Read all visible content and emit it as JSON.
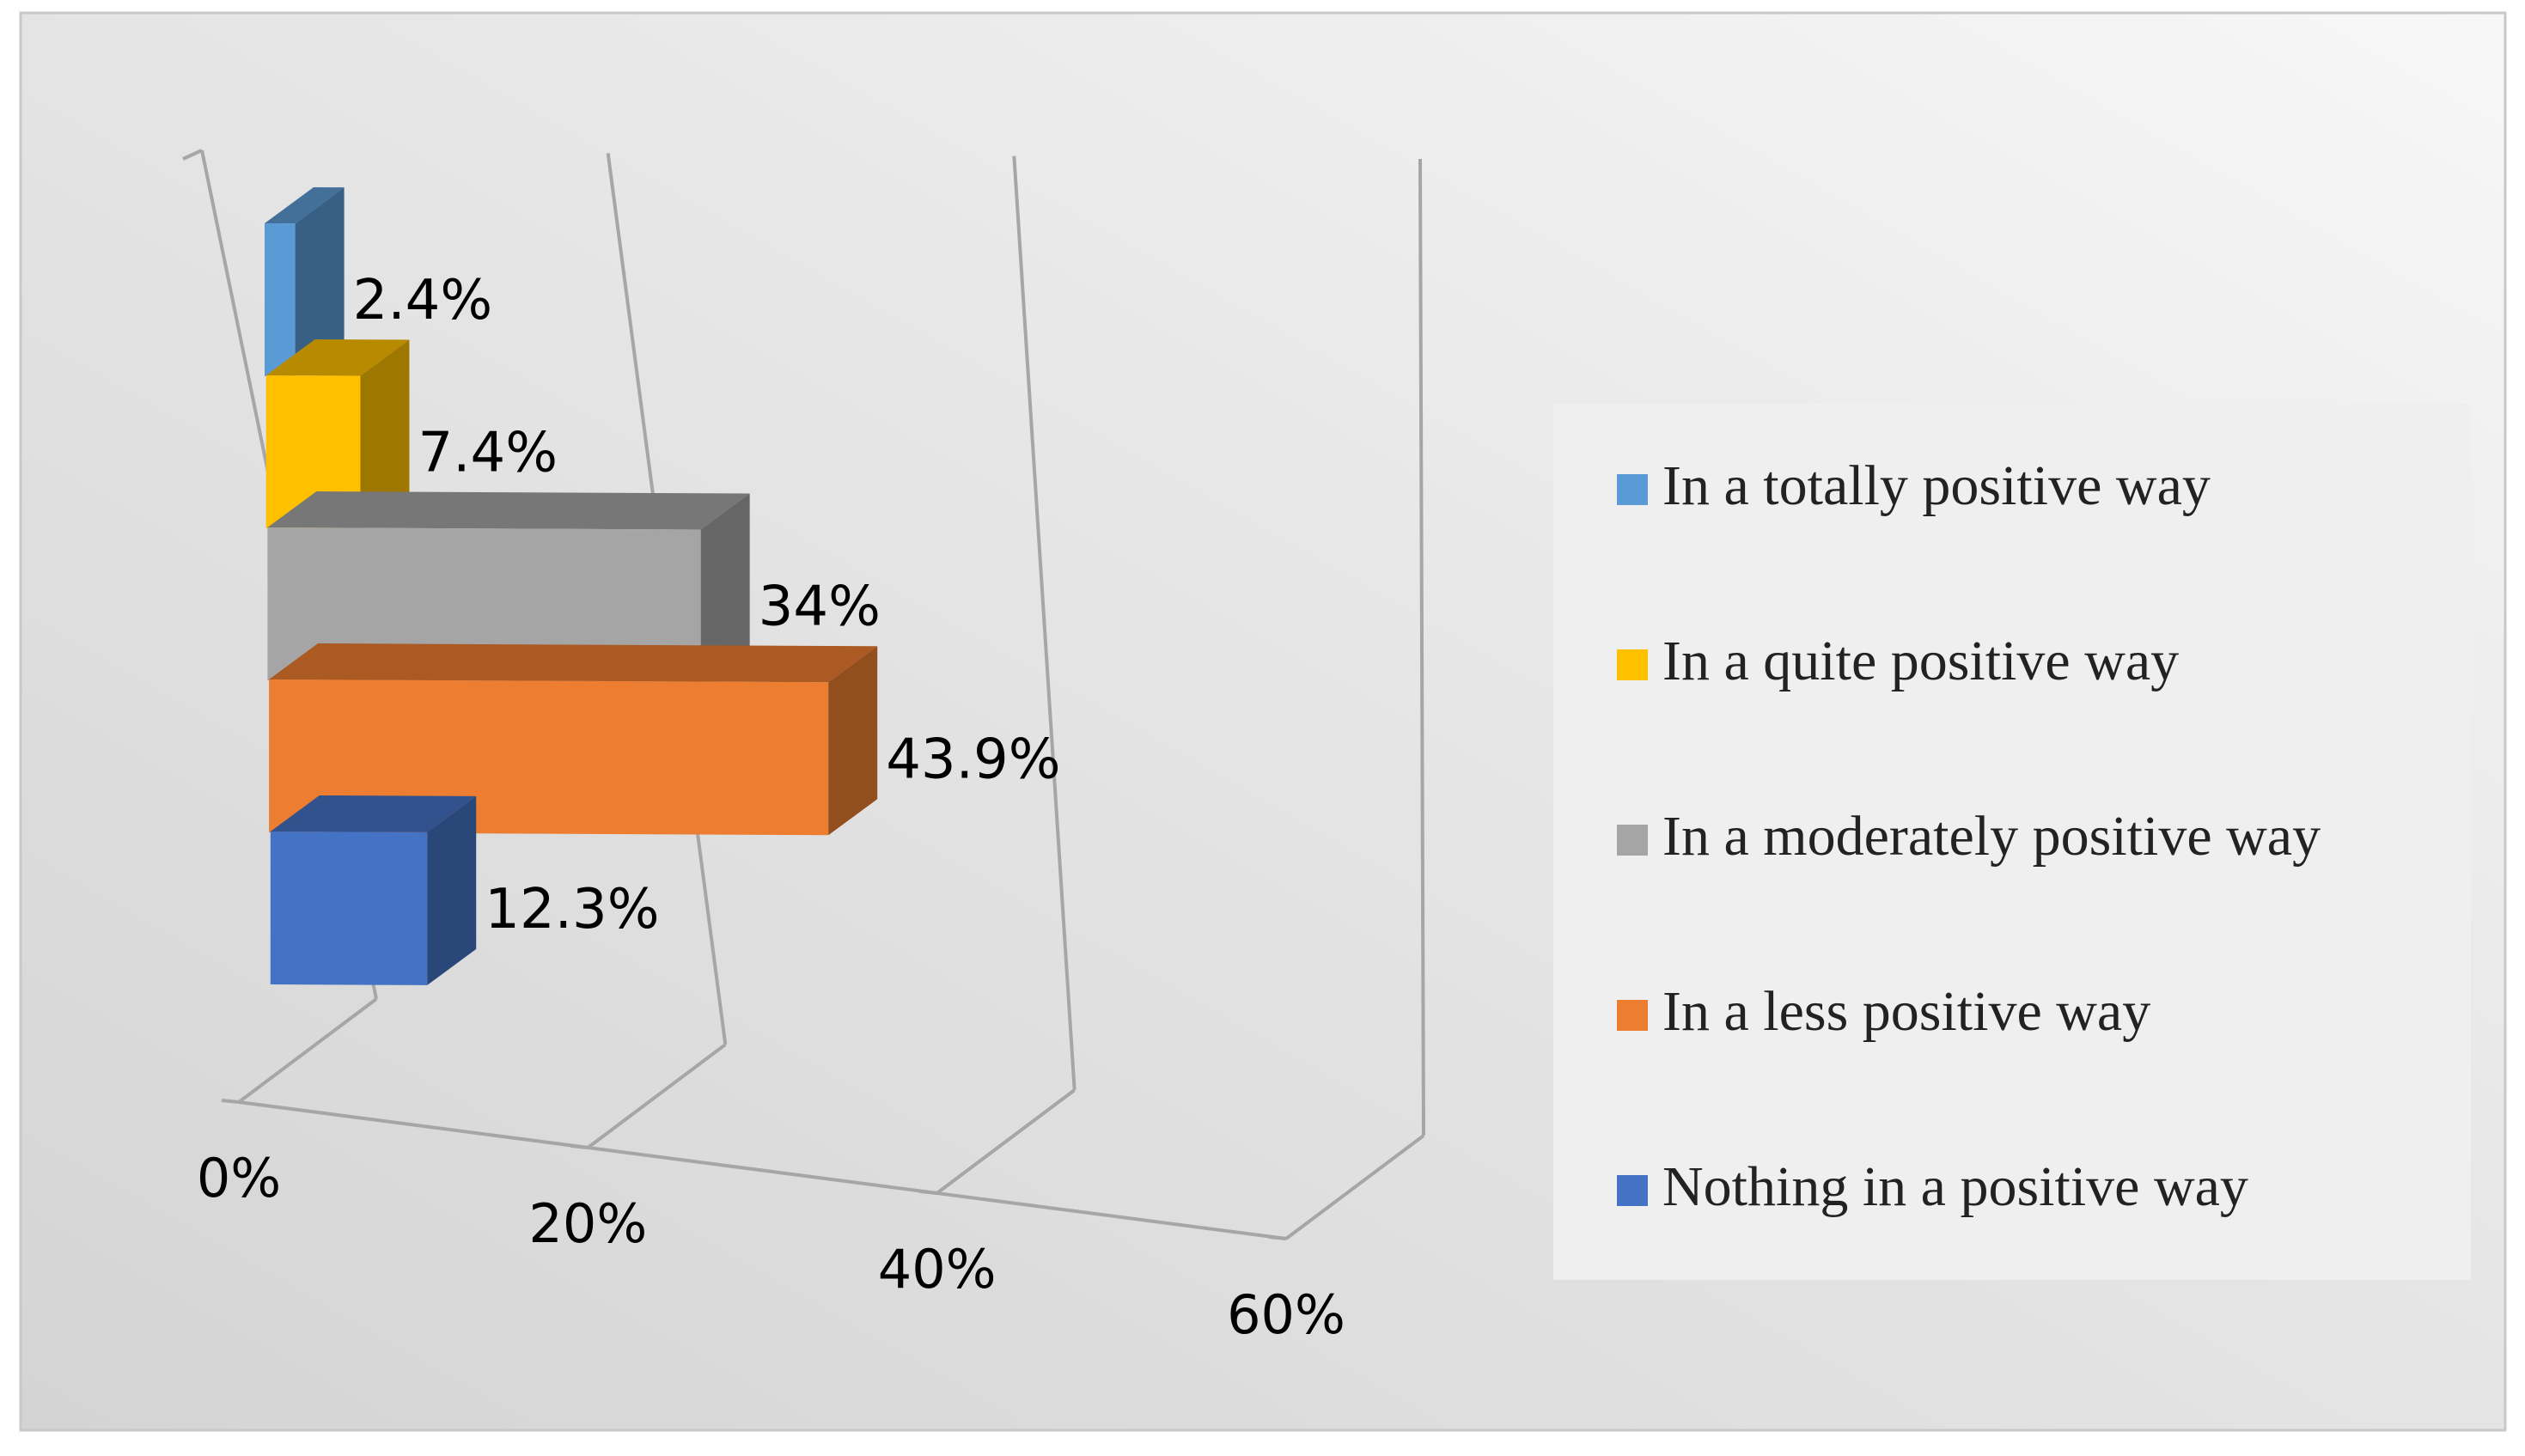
{
  "chart_data": {
    "type": "bar",
    "orientation": "horizontal",
    "style": "3d",
    "categories": [
      "In a totally positive way",
      "In a quite positive way",
      "In a moderately positive way",
      "In a less positive way",
      "Nothing in a positive way"
    ],
    "values": [
      2.4,
      7.4,
      34,
      43.9,
      12.3
    ],
    "data_labels": [
      "2.4%",
      "7.4%",
      "34%",
      "43.9%",
      "12.3%"
    ],
    "colors": [
      "#5b9bd5",
      "#ffc000",
      "#a5a5a5",
      "#ed7d31",
      "#4472c4"
    ],
    "x_ticks": [
      {
        "value": 0,
        "label": "0%"
      },
      {
        "value": 20,
        "label": "20%"
      },
      {
        "value": 40,
        "label": "40%"
      },
      {
        "value": 60,
        "label": "60%"
      }
    ],
    "xlim": [
      0,
      60
    ],
    "grid": true,
    "legend_position": "right",
    "legend": [
      {
        "label": "In a totally positive way",
        "color": "#5b9bd5"
      },
      {
        "label": "In a quite positive way",
        "color": "#ffc000"
      },
      {
        "label": "In a moderately positive way",
        "color": "#a5a5a5"
      },
      {
        "label": "In a less positive way",
        "color": "#ed7d31"
      },
      {
        "label": "Nothing in a positive way",
        "color": "#4472c4"
      }
    ],
    "title": "",
    "xlabel": "",
    "ylabel": ""
  }
}
